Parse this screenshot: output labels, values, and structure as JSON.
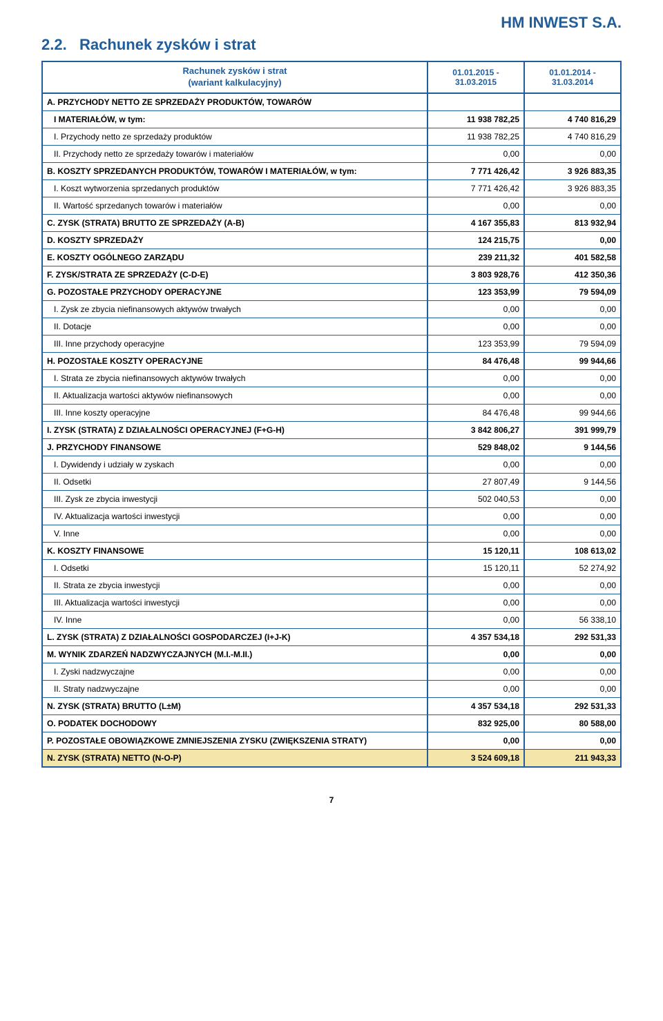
{
  "company_name": "HM INWEST S.A.",
  "section_number": "2.2.",
  "section_title": "Rachunek  zysków i strat",
  "table_header": {
    "left_line1": "Rachunek zysków i strat",
    "left_line2": "(wariant kalkulacyjny)",
    "col1_line1": "01.01.2015 -",
    "col1_line2": "31.03.2015",
    "col2_line1": "01.01.2014 -",
    "col2_line2": "31.03.2014"
  },
  "rows": [
    {
      "label": "A. PRZYCHODY NETTO ZE SPRZEDAŻY PRODUKTÓW, TOWARÓW",
      "v1": "",
      "v2": "",
      "bold": true,
      "indent": 0,
      "fill": false,
      "topBorder": true
    },
    {
      "label": "I MATERIAŁÓW, w tym:",
      "v1": "11 938 782,25",
      "v2": "4 740 816,29",
      "bold": true,
      "indent": 1,
      "fill": false
    },
    {
      "label": "I. Przychody netto ze sprzedaży produktów",
      "v1": "11 938 782,25",
      "v2": "4 740 816,29",
      "bold": false,
      "indent": 1,
      "fill": false
    },
    {
      "label": "II. Przychody netto ze sprzedaży towarów i materiałów",
      "v1": "0,00",
      "v2": "0,00",
      "bold": false,
      "indent": 1,
      "fill": false
    },
    {
      "label": "B. KOSZTY SPRZEDANYCH PRODUKTÓW, TOWARÓW I MATERIAŁÓW, w tym:",
      "v1": "7 771 426,42",
      "v2": "3 926 883,35",
      "bold": true,
      "indent": 0,
      "fill": false
    },
    {
      "label": "I. Koszt wytworzenia sprzedanych produktów",
      "v1": "7 771 426,42",
      "v2": "3 926 883,35",
      "bold": false,
      "indent": 1,
      "fill": false
    },
    {
      "label": "II. Wartość sprzedanych towarów i materiałów",
      "v1": "0,00",
      "v2": "0,00",
      "bold": false,
      "indent": 1,
      "fill": false
    },
    {
      "label": "C. ZYSK (STRATA) BRUTTO ZE SPRZEDAŻY (A-B)",
      "v1": "4 167 355,83",
      "v2": "813 932,94",
      "bold": true,
      "indent": 0,
      "fill": false
    },
    {
      "label": "D. KOSZTY SPRZEDAŻY",
      "v1": "124 215,75",
      "v2": "0,00",
      "bold": true,
      "indent": 0,
      "fill": false
    },
    {
      "label": "E. KOSZTY OGÓLNEGO ZARZĄDU",
      "v1": "239 211,32",
      "v2": "401 582,58",
      "bold": true,
      "indent": 0,
      "fill": false
    },
    {
      "label": "F. ZYSK/STRATA ZE SPRZEDAŻY (C-D-E)",
      "v1": "3 803 928,76",
      "v2": "412 350,36",
      "bold": true,
      "indent": 0,
      "fill": false
    },
    {
      "label": "G. POZOSTAŁE PRZYCHODY OPERACYJNE",
      "v1": "123 353,99",
      "v2": "79 594,09",
      "bold": true,
      "indent": 0,
      "fill": false
    },
    {
      "label": "I. Zysk ze zbycia niefinansowych aktywów trwałych",
      "v1": "0,00",
      "v2": "0,00",
      "bold": false,
      "indent": 1,
      "fill": false
    },
    {
      "label": "II. Dotacje",
      "v1": "0,00",
      "v2": "0,00",
      "bold": false,
      "indent": 1,
      "fill": false
    },
    {
      "label": "III. Inne przychody operacyjne",
      "v1": "123 353,99",
      "v2": "79 594,09",
      "bold": false,
      "indent": 1,
      "fill": false
    },
    {
      "label": "H. POZOSTAŁE KOSZTY OPERACYJNE",
      "v1": "84 476,48",
      "v2": "99 944,66",
      "bold": true,
      "indent": 0,
      "fill": false
    },
    {
      "label": "I. Strata ze zbycia niefinansowych aktywów trwałych",
      "v1": "0,00",
      "v2": "0,00",
      "bold": false,
      "indent": 1,
      "fill": false
    },
    {
      "label": "II. Aktualizacja wartości aktywów niefinansowych",
      "v1": "0,00",
      "v2": "0,00",
      "bold": false,
      "indent": 1,
      "fill": false
    },
    {
      "label": "III. Inne koszty operacyjne",
      "v1": "84 476,48",
      "v2": "99 944,66",
      "bold": false,
      "indent": 1,
      "fill": false
    },
    {
      "label": "I. ZYSK (STRATA) Z DZIAŁALNOŚCI OPERACYJNEJ (F+G-H)",
      "v1": "3 842 806,27",
      "v2": "391 999,79",
      "bold": true,
      "indent": 0,
      "fill": false
    },
    {
      "label": "J. PRZYCHODY FINANSOWE",
      "v1": "529 848,02",
      "v2": "9 144,56",
      "bold": true,
      "indent": 0,
      "fill": false
    },
    {
      "label": "I. Dywidendy i udziały w zyskach",
      "v1": "0,00",
      "v2": "0,00",
      "bold": false,
      "indent": 1,
      "fill": false
    },
    {
      "label": "II. Odsetki",
      "v1": "27 807,49",
      "v2": "9 144,56",
      "bold": false,
      "indent": 1,
      "fill": false
    },
    {
      "label": "III. Zysk ze zbycia inwestycji",
      "v1": "502 040,53",
      "v2": "0,00",
      "bold": false,
      "indent": 1,
      "fill": false
    },
    {
      "label": "IV. Aktualizacja wartości inwestycji",
      "v1": "0,00",
      "v2": "0,00",
      "bold": false,
      "indent": 1,
      "fill": false
    },
    {
      "label": "V. Inne",
      "v1": "0,00",
      "v2": "0,00",
      "bold": false,
      "indent": 1,
      "fill": false
    },
    {
      "label": "K. KOSZTY FINANSOWE",
      "v1": "15 120,11",
      "v2": "108 613,02",
      "bold": true,
      "indent": 0,
      "fill": false
    },
    {
      "label": "I. Odsetki",
      "v1": "15 120,11",
      "v2": "52 274,92",
      "bold": false,
      "indent": 1,
      "fill": false
    },
    {
      "label": "II. Strata ze zbycia inwestycji",
      "v1": "0,00",
      "v2": "0,00",
      "bold": false,
      "indent": 1,
      "fill": false
    },
    {
      "label": "III. Aktualizacja wartości inwestycji",
      "v1": "0,00",
      "v2": "0,00",
      "bold": false,
      "indent": 1,
      "fill": false
    },
    {
      "label": "IV. Inne",
      "v1": "0,00",
      "v2": "56 338,10",
      "bold": false,
      "indent": 1,
      "fill": false
    },
    {
      "label": "L. ZYSK (STRATA) Z DZIAŁALNOŚCI GOSPODARCZEJ (I+J-K)",
      "v1": "4 357 534,18",
      "v2": "292 531,33",
      "bold": true,
      "indent": 0,
      "fill": false
    },
    {
      "label": "M. WYNIK ZDARZEŃ NADZWYCZAJNYCH (M.I.-M.II.)",
      "v1": "0,00",
      "v2": "0,00",
      "bold": true,
      "indent": 0,
      "fill": false
    },
    {
      "label": "I. Zyski nadzwyczajne",
      "v1": "0,00",
      "v2": "0,00",
      "bold": false,
      "indent": 1,
      "fill": false
    },
    {
      "label": "II. Straty nadzwyczajne",
      "v1": "0,00",
      "v2": "0,00",
      "bold": false,
      "indent": 1,
      "fill": false
    },
    {
      "label": "N. ZYSK (STRATA) BRUTTO (L±M)",
      "v1": "4 357 534,18",
      "v2": "292 531,33",
      "bold": true,
      "indent": 0,
      "fill": false
    },
    {
      "label": "O. PODATEK DOCHODOWY",
      "v1": "832 925,00",
      "v2": "80 588,00",
      "bold": true,
      "indent": 0,
      "fill": false
    },
    {
      "label": "P. POZOSTAŁE OBOWIĄZKOWE ZMNIEJSZENIA ZYSKU (ZWIĘKSZENIA STRATY)",
      "v1": "0,00",
      "v2": "0,00",
      "bold": true,
      "indent": 0,
      "fill": false
    },
    {
      "label": "N. ZYSK (STRATA) NETTO (N-O-P)",
      "v1": "3 524 609,18",
      "v2": "211 943,33",
      "bold": true,
      "indent": 0,
      "fill": true,
      "lastRow": true
    }
  ],
  "page_number": "7",
  "colors": {
    "brand_blue": "#1f5d9c",
    "highlight_fill": "#f4e6ab"
  }
}
